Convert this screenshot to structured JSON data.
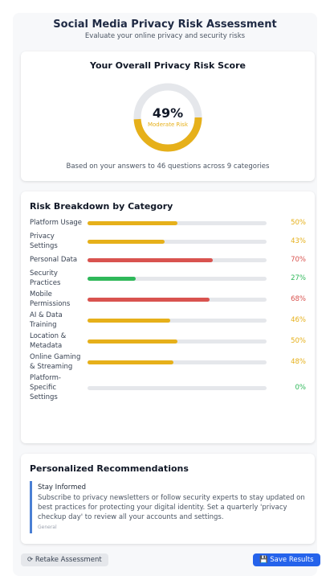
{
  "header": {
    "title": "Social Media Privacy Risk Assessment",
    "subtitle": "Evaluate your online privacy and security risks"
  },
  "score": {
    "title": "Your Overall Privacy Risk Score",
    "value": 49,
    "label": "49%",
    "range": [
      0,
      100
    ],
    "level": "Moderate Risk",
    "color": "#e6b01a",
    "note": "Based on your answers to 46 questions across 9 categories"
  },
  "breakdown": {
    "title": "Risk Breakdown by Category",
    "range": [
      0,
      100
    ],
    "categories": [
      {
        "name": "Platform Usage",
        "value": 50,
        "label": "50%",
        "color": "#e6b01a"
      },
      {
        "name": "Privacy Settings",
        "value": 43,
        "label": "43%",
        "color": "#e6b01a"
      },
      {
        "name": "Personal Data",
        "value": 70,
        "label": "70%",
        "color": "#d9534f"
      },
      {
        "name": "Security Practices",
        "value": 27,
        "label": "27%",
        "color": "#2fb85a"
      },
      {
        "name": "Mobile Permissions",
        "value": 68,
        "label": "68%",
        "color": "#d9534f"
      },
      {
        "name": "AI & Data Training",
        "value": 46,
        "label": "46%",
        "color": "#e6b01a"
      },
      {
        "name": "Location & Metadata",
        "value": 50,
        "label": "50%",
        "color": "#e6b01a"
      },
      {
        "name": "Online Gaming & Streaming",
        "value": 48,
        "label": "48%",
        "color": "#e6b01a"
      },
      {
        "name": "Platform-Specific Settings",
        "value": 0,
        "label": "0%",
        "color": "#2fb85a"
      }
    ]
  },
  "recommendations": {
    "title": "Personalized Recommendations",
    "items": [
      {
        "title": "Stay Informed",
        "text": "Subscribe to privacy newsletters or follow security experts to stay updated on best practices for protecting your digital identity. Set a quarterly 'privacy checkup day' to review all your accounts and settings.",
        "tag": "General"
      }
    ]
  },
  "buttons": {
    "retake": "⟳ Retake Assessment",
    "save": "💾 Save Results"
  }
}
